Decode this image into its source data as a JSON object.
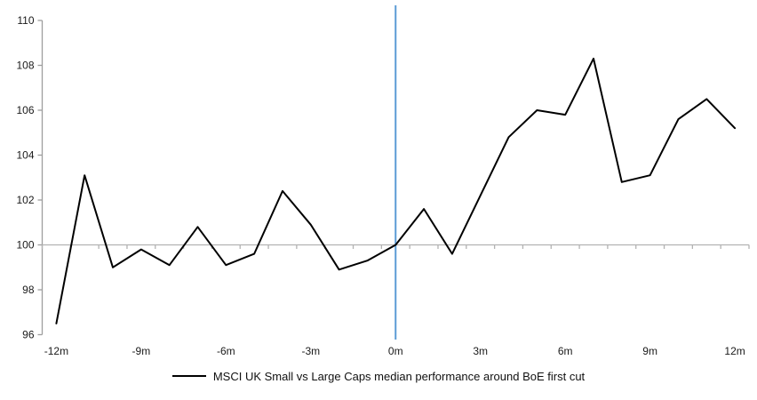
{
  "chart_data": {
    "type": "line",
    "title": "",
    "xlabel": "",
    "ylabel": "",
    "legend": "MSCI UK Small vs Large Caps median performance around BoE first cut",
    "legend_position": "bottom-center",
    "grid": "baseline-only",
    "x_months": [
      -12,
      -11,
      -10,
      -9,
      -8,
      -7,
      -6,
      -5,
      -4,
      -3,
      -2,
      -1,
      0,
      1,
      2,
      3,
      4,
      5,
      6,
      7,
      8,
      9,
      10,
      11,
      12
    ],
    "x_tick_labels": [
      "-12m",
      "-9m",
      "-6m",
      "-3m",
      "0m",
      "3m",
      "6m",
      "9m",
      "12m"
    ],
    "x_label_every_months": 3,
    "series": [
      {
        "name": "MSCI UK Small vs Large Caps median performance around BoE first cut",
        "values": [
          96.5,
          103.1,
          99.0,
          99.8,
          99.1,
          100.8,
          99.1,
          99.6,
          102.4,
          100.9,
          98.9,
          99.3,
          100.0,
          101.6,
          99.6,
          102.2,
          104.8,
          106.0,
          105.8,
          108.3,
          102.8,
          103.1,
          105.6,
          106.5,
          105.2
        ]
      }
    ],
    "ylim": [
      96,
      110
    ],
    "ytick_step": 2,
    "ytick_labels": [
      "110",
      "108",
      "106",
      "104",
      "102",
      "100",
      "98",
      "96"
    ],
    "baseline_value": 100,
    "event_line_month": 0,
    "colors": {
      "series_line": "#000000",
      "event_line": "#5B9BD5",
      "axis_line": "#9e9e9e",
      "baseline": "#b3b3b3",
      "tick_text": "#1a1a1a"
    }
  }
}
